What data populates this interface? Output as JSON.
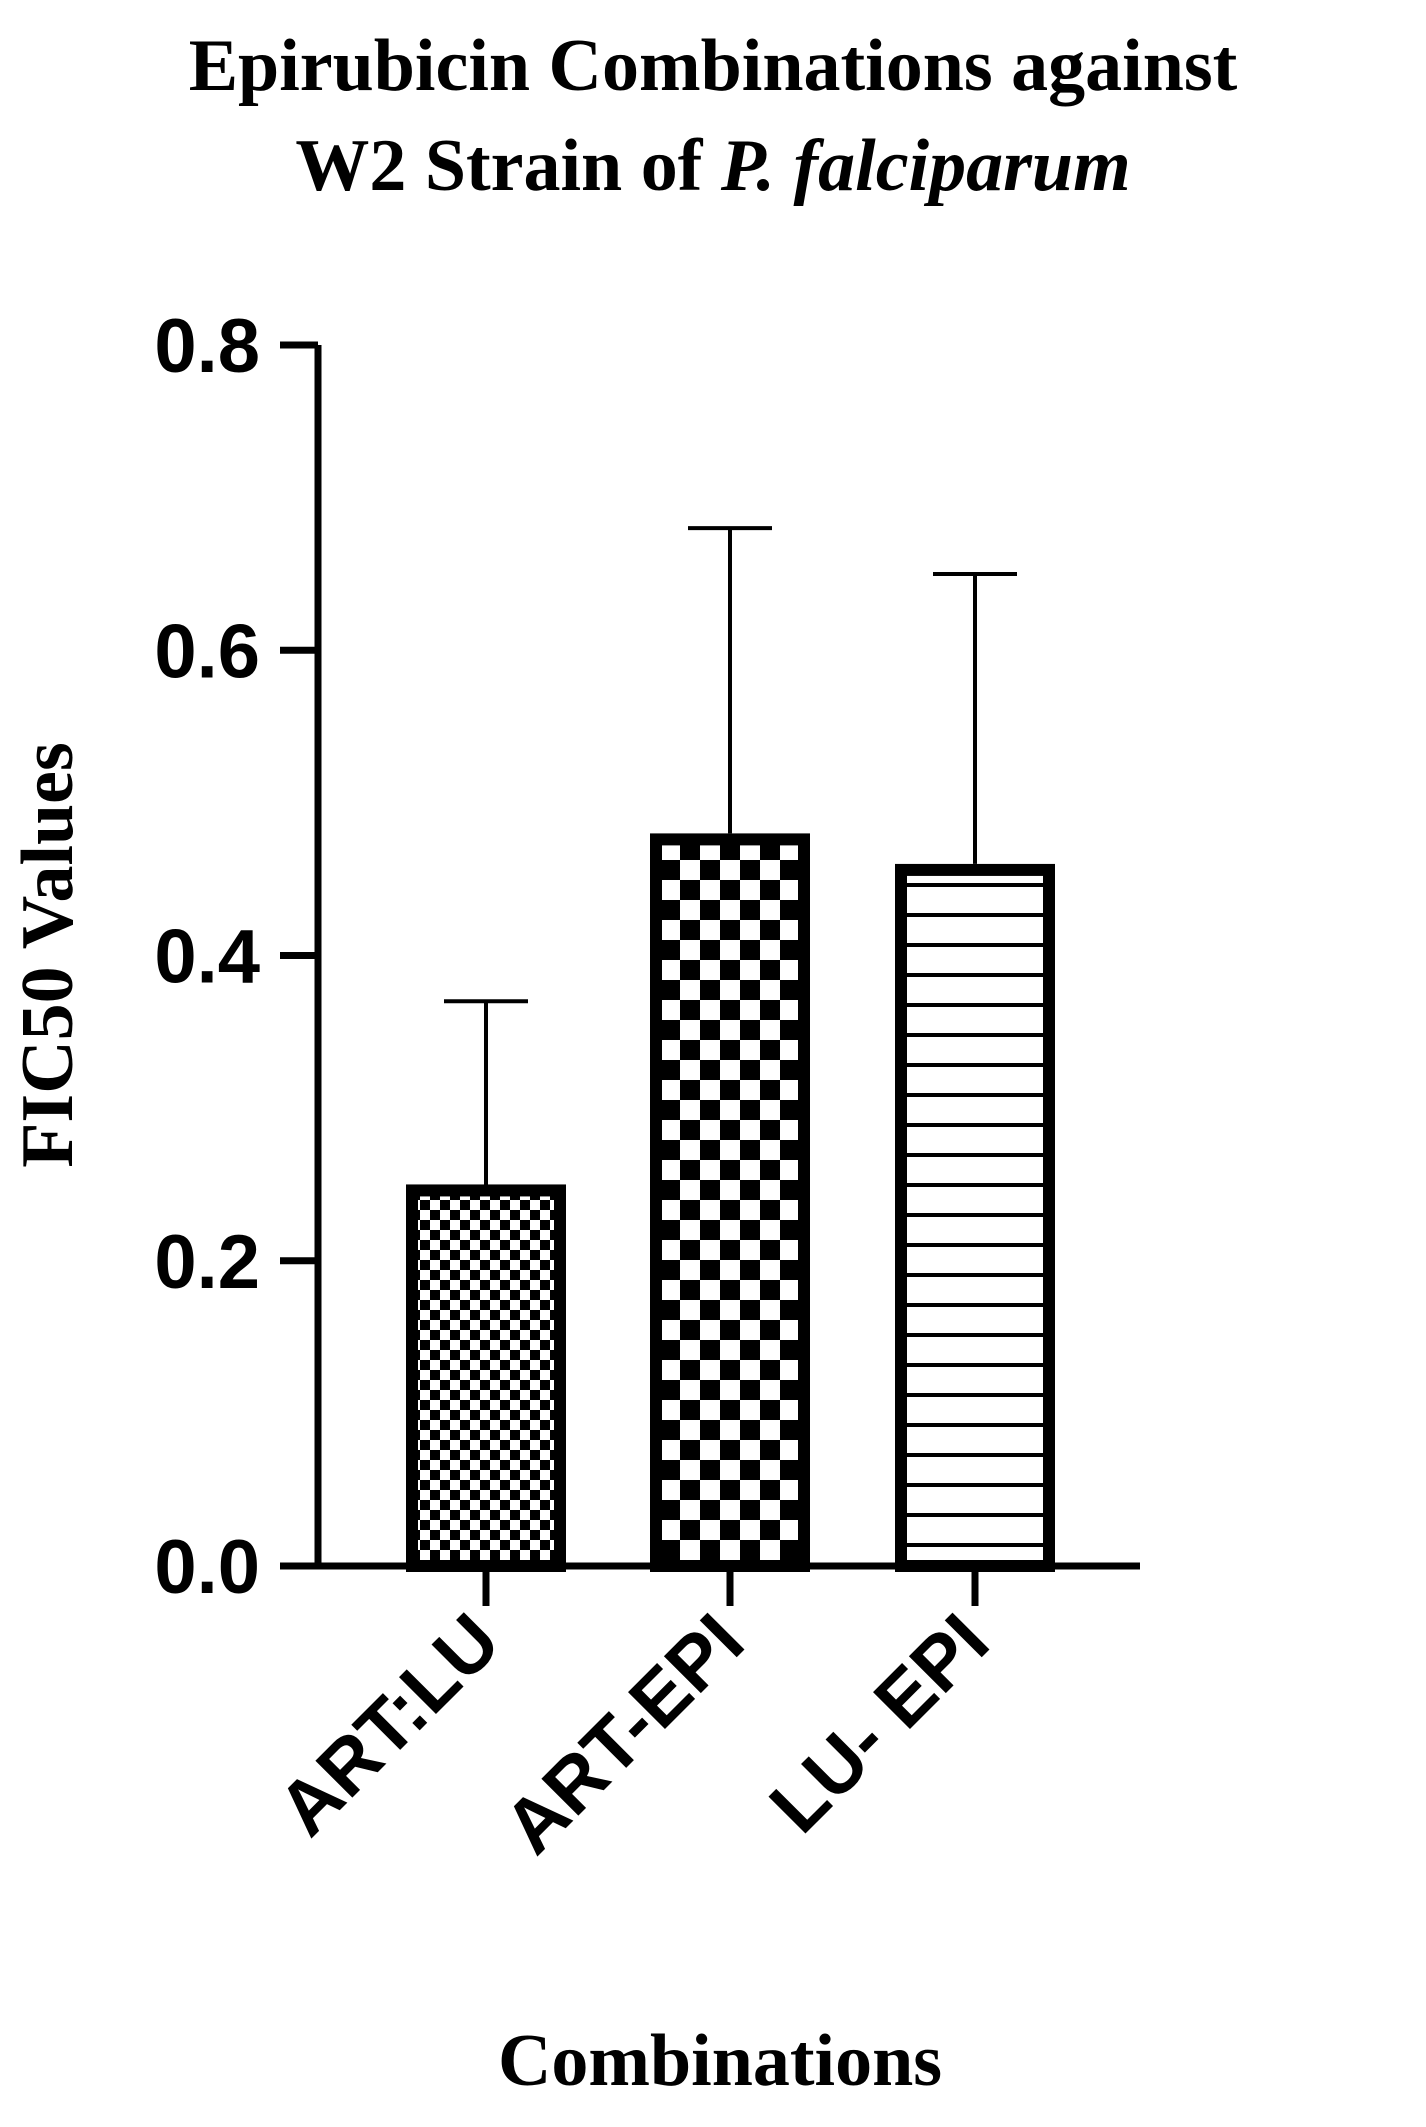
{
  "chart_data": {
    "type": "bar",
    "title_line1": "Epirubicin Combinations against",
    "title_line2_prefix": "W2 Strain of ",
    "title_line2_italic": "P. falciparum",
    "xlabel": "Combinations",
    "ylabel": "FIC50 Values",
    "ylim": [
      0,
      0.8
    ],
    "yticks": [
      "0.0",
      "0.2",
      "0.4",
      "0.6",
      "0.8"
    ],
    "categories": [
      "ART:LU",
      "ART-EPI",
      "LU- EPI"
    ],
    "values": [
      0.25,
      0.48,
      0.46
    ],
    "error_upper": [
      0.37,
      0.68,
      0.65
    ],
    "patterns": [
      "fine-checker",
      "coarse-checker",
      "horizontal-lines"
    ],
    "colors": {
      "ink": "#000000",
      "background": "#ffffff"
    }
  }
}
